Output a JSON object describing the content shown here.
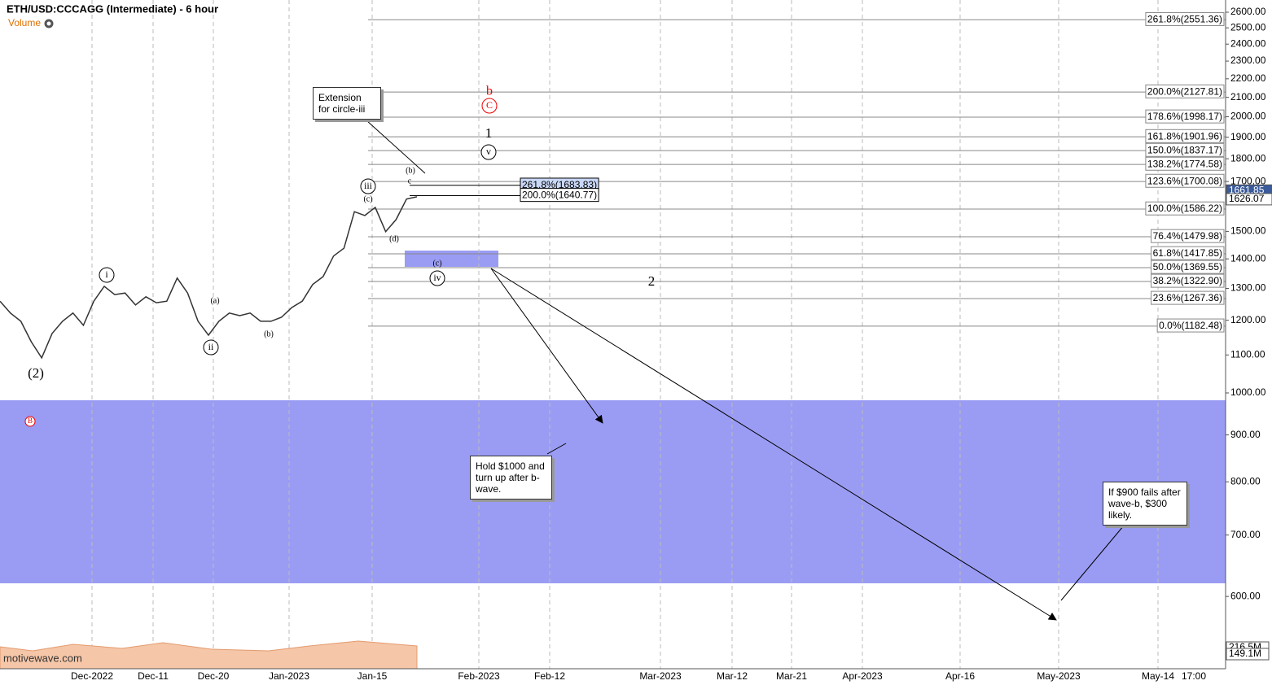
{
  "chart_data": {
    "type": "line",
    "title": "ETH/USD:CCCAGG (Intermediate) - 6 hour",
    "volume_label": "Volume",
    "watermark": "motivewave.com",
    "log": true,
    "ylim": [
      568,
      2681
    ],
    "yticks": [
      {
        "value": 2600,
        "label": "2600.00"
      },
      {
        "value": 2500,
        "label": "2500.00"
      },
      {
        "value": 2400,
        "label": "2400.00"
      },
      {
        "value": 2300,
        "label": "2300.00"
      },
      {
        "value": 2200,
        "label": "2200.00"
      },
      {
        "value": 2100,
        "label": "2100.00"
      },
      {
        "value": 2000,
        "label": "2000.00"
      },
      {
        "value": 1900,
        "label": "1900.00"
      },
      {
        "value": 1800,
        "label": "1800.00"
      },
      {
        "value": 1700,
        "label": "1700.00"
      },
      {
        "value": 1500,
        "label": "1500.00"
      },
      {
        "value": 1400,
        "label": "1400.00"
      },
      {
        "value": 1300,
        "label": "1300.00"
      },
      {
        "value": 1200,
        "label": "1200.00"
      },
      {
        "value": 1100,
        "label": "1100.00"
      },
      {
        "value": 1000,
        "label": "1000.00"
      },
      {
        "value": 900,
        "label": "900.00"
      },
      {
        "value": 800,
        "label": "800.00"
      },
      {
        "value": 700,
        "label": "700.00"
      },
      {
        "value": 600,
        "label": "600.00"
      }
    ],
    "xticks": [
      "Dec-2022",
      "Dec-11",
      "Dec-20",
      "Jan-2023",
      "Jan-15",
      "Feb-2023",
      "Feb-12",
      "Mar-2023",
      "Mar-12",
      "Mar-21",
      "Apr-2023",
      "Apr-16",
      "May-2023",
      "May-14",
      "17:00"
    ],
    "series": [
      {
        "name": "ETH/USD",
        "color": "#333333",
        "values": [
          1259,
          1222,
          1197,
          1137,
          1092,
          1161,
          1197,
          1222,
          1185,
          1259,
          1307,
          1280,
          1285,
          1247,
          1273,
          1254,
          1259,
          1334,
          1285,
          1197,
          1156,
          1197,
          1222,
          1214,
          1222,
          1197,
          1197,
          1209,
          1239,
          1259,
          1313,
          1339,
          1410,
          1438,
          1576,
          1561,
          1593,
          1499,
          1545,
          1627,
          1636
        ]
      }
    ],
    "price_tags": [
      {
        "value": 1661.85,
        "label": "1661.85"
      },
      {
        "value": 1626.07,
        "label": "1626.07"
      }
    ],
    "volume_tags": [
      "216.5M",
      "149.1M"
    ],
    "fib_levels": [
      {
        "value": 2551.36,
        "label": "261.8%(2551.36)"
      },
      {
        "value": 2127.81,
        "label": "200.0%(2127.81)"
      },
      {
        "value": 1998.17,
        "label": "178.6%(1998.17)"
      },
      {
        "value": 1901.96,
        "label": "161.8%(1901.96)"
      },
      {
        "value": 1837.17,
        "label": "150.0%(1837.17)"
      },
      {
        "value": 1774.58,
        "label": "138.2%(1774.58)"
      },
      {
        "value": 1700.08,
        "label": "123.6%(1700.08)"
      },
      {
        "value": 1586.22,
        "label": "100.0%(1586.22)"
      },
      {
        "value": 1479.98,
        "label": "76.4%(1479.98)"
      },
      {
        "value": 1417.85,
        "label": "61.8%(1417.85)"
      },
      {
        "value": 1369.55,
        "label": "50.0%(1369.55)"
      },
      {
        "value": 1322.9,
        "label": "38.2%(1322.90)"
      },
      {
        "value": 1267.36,
        "label": "23.6%(1267.36)"
      },
      {
        "value": 1182.48,
        "label": "0.0%(1182.48)"
      }
    ],
    "extension_levels": [
      {
        "value": 1683.83,
        "label": "261.8%(1683.83)"
      },
      {
        "value": 1640.77,
        "label": "200.0%(1640.77)"
      }
    ],
    "wave_labels": [
      "(2)",
      "i",
      "ii",
      "iii",
      "iv",
      "v",
      "(a)",
      "(b)",
      "(c)",
      "(d)",
      "(b)",
      "c",
      "(c)",
      "1",
      "2",
      "b",
      "C",
      "B"
    ],
    "notes": [
      "Extension for circle-iii",
      "Hold $1000 and turn up after b-wave.",
      "If $900 fails after wave-b, $300 likely."
    ]
  }
}
